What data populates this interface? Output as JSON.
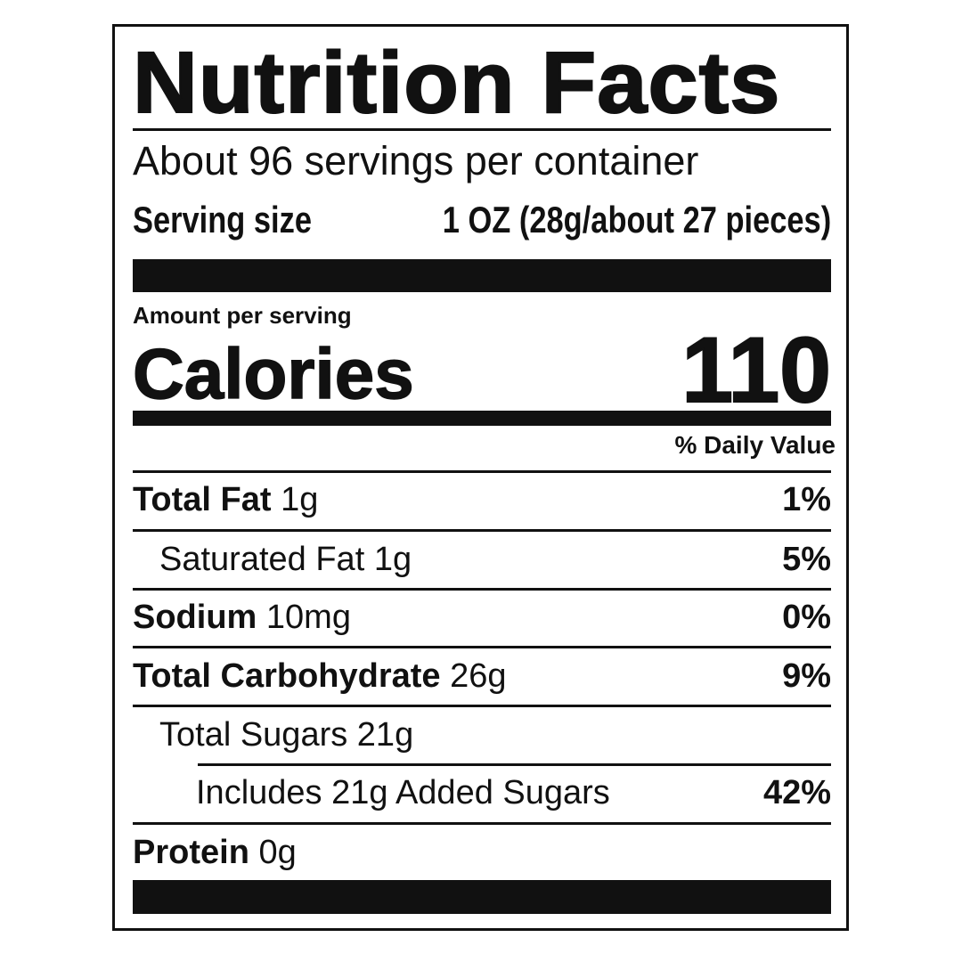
{
  "title": "Nutrition Facts",
  "servings_per_container": "About 96 servings per container",
  "serving_size": {
    "label": "Serving size",
    "value": "1 OZ (28g/about 27 pieces)"
  },
  "amount_per_serving": "Amount per serving",
  "calories": {
    "label": "Calories",
    "value": "110"
  },
  "daily_value_header": "% Daily Value",
  "nutrients": [
    {
      "name": "Total Fat",
      "amount": "1g",
      "dv": "1%"
    },
    {
      "name": "Saturated Fat",
      "amount": "1g",
      "dv": "5%"
    },
    {
      "name": "Sodium",
      "amount": "10mg",
      "dv": "0%"
    },
    {
      "name": "Total Carbohydrate",
      "amount": "26g",
      "dv": "9%"
    },
    {
      "name": "Total Sugars",
      "amount": "21g",
      "dv": ""
    },
    {
      "name": "Includes 21g Added Sugars",
      "amount": "",
      "dv": "42%"
    },
    {
      "name": "Protein",
      "amount": "0g",
      "dv": ""
    }
  ]
}
